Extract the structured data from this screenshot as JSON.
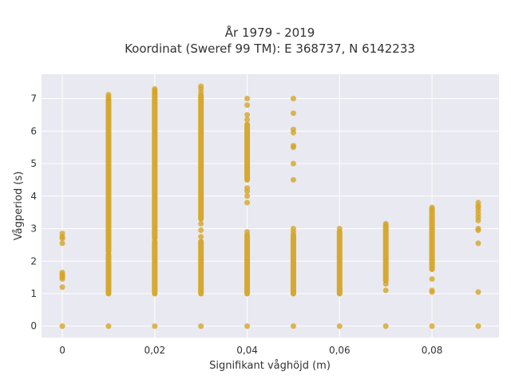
{
  "chart_data": {
    "type": "scatter",
    "title_line1": "År 1979 - 2019",
    "title_line2": "Koordinat (Sweref 99 TM): E 368737, N 6142233",
    "xlabel": "Signifikant våghöjd (m)",
    "ylabel": "Vågperiod (s)",
    "xlim": [
      -0.0045,
      0.0945
    ],
    "ylim": [
      -0.35,
      7.75
    ],
    "x_ticks": [
      0,
      0.02,
      0.04,
      0.06,
      0.08
    ],
    "x_tick_labels": [
      "0",
      "0,02",
      "0,04",
      "0,06",
      "0,08"
    ],
    "y_ticks": [
      0,
      1,
      2,
      3,
      4,
      5,
      6,
      7
    ],
    "y_tick_labels": [
      "0",
      "1",
      "2",
      "3",
      "4",
      "5",
      "6",
      "7"
    ],
    "grid": true,
    "marker_color": "#d4a526",
    "plot_bg": "#e9e9f1",
    "columns": [
      {
        "x": 0,
        "y_points": [
          0,
          1.2,
          1.45,
          1.5,
          1.55,
          1.6,
          1.65,
          2.55,
          2.7,
          2.75,
          2.85
        ],
        "y_ranges": []
      },
      {
        "x": 0.01,
        "y_points": [
          0,
          7.0,
          7.05,
          7.12
        ],
        "y_ranges": [
          [
            1.0,
            2.2
          ],
          [
            2.3,
            6.95
          ]
        ]
      },
      {
        "x": 0.02,
        "y_points": [
          0,
          7.2,
          7.25,
          7.3
        ],
        "y_ranges": [
          [
            1.0,
            2.6
          ],
          [
            2.7,
            7.15
          ]
        ]
      },
      {
        "x": 0.03,
        "y_points": [
          0,
          2.75,
          2.95,
          3.15,
          7.2,
          7.3,
          7.38
        ],
        "y_ranges": [
          [
            1.0,
            2.6
          ],
          [
            3.3,
            7.1
          ]
        ]
      },
      {
        "x": 0.04,
        "y_points": [
          0,
          2.9,
          3.8,
          4.0,
          4.15,
          4.25,
          6.35,
          6.5,
          6.8,
          7.0
        ],
        "y_ranges": [
          [
            1.0,
            2.8
          ],
          [
            4.5,
            6.2
          ]
        ]
      },
      {
        "x": 0.05,
        "y_points": [
          0,
          2.9,
          3.0,
          4.5,
          5.0,
          5.5,
          5.55,
          5.95,
          6.05,
          6.55,
          7.0
        ],
        "y_ranges": [
          [
            1.0,
            2.8
          ]
        ]
      },
      {
        "x": 0.06,
        "y_points": [
          0,
          3.0
        ],
        "y_ranges": [
          [
            1.0,
            2.9
          ]
        ]
      },
      {
        "x": 0.07,
        "y_points": [
          0,
          1.1,
          1.3,
          3.15
        ],
        "y_ranges": [
          [
            1.4,
            3.1
          ]
        ]
      },
      {
        "x": 0.08,
        "y_points": [
          0,
          1.05,
          1.1,
          1.45,
          3.65
        ],
        "y_ranges": [
          [
            1.75,
            3.6
          ]
        ]
      },
      {
        "x": 0.09,
        "y_points": [
          0,
          1.05,
          2.55,
          2.95,
          3.0,
          3.25,
          3.35,
          3.45,
          3.55,
          3.65,
          3.7,
          3.8
        ],
        "y_ranges": []
      }
    ]
  }
}
